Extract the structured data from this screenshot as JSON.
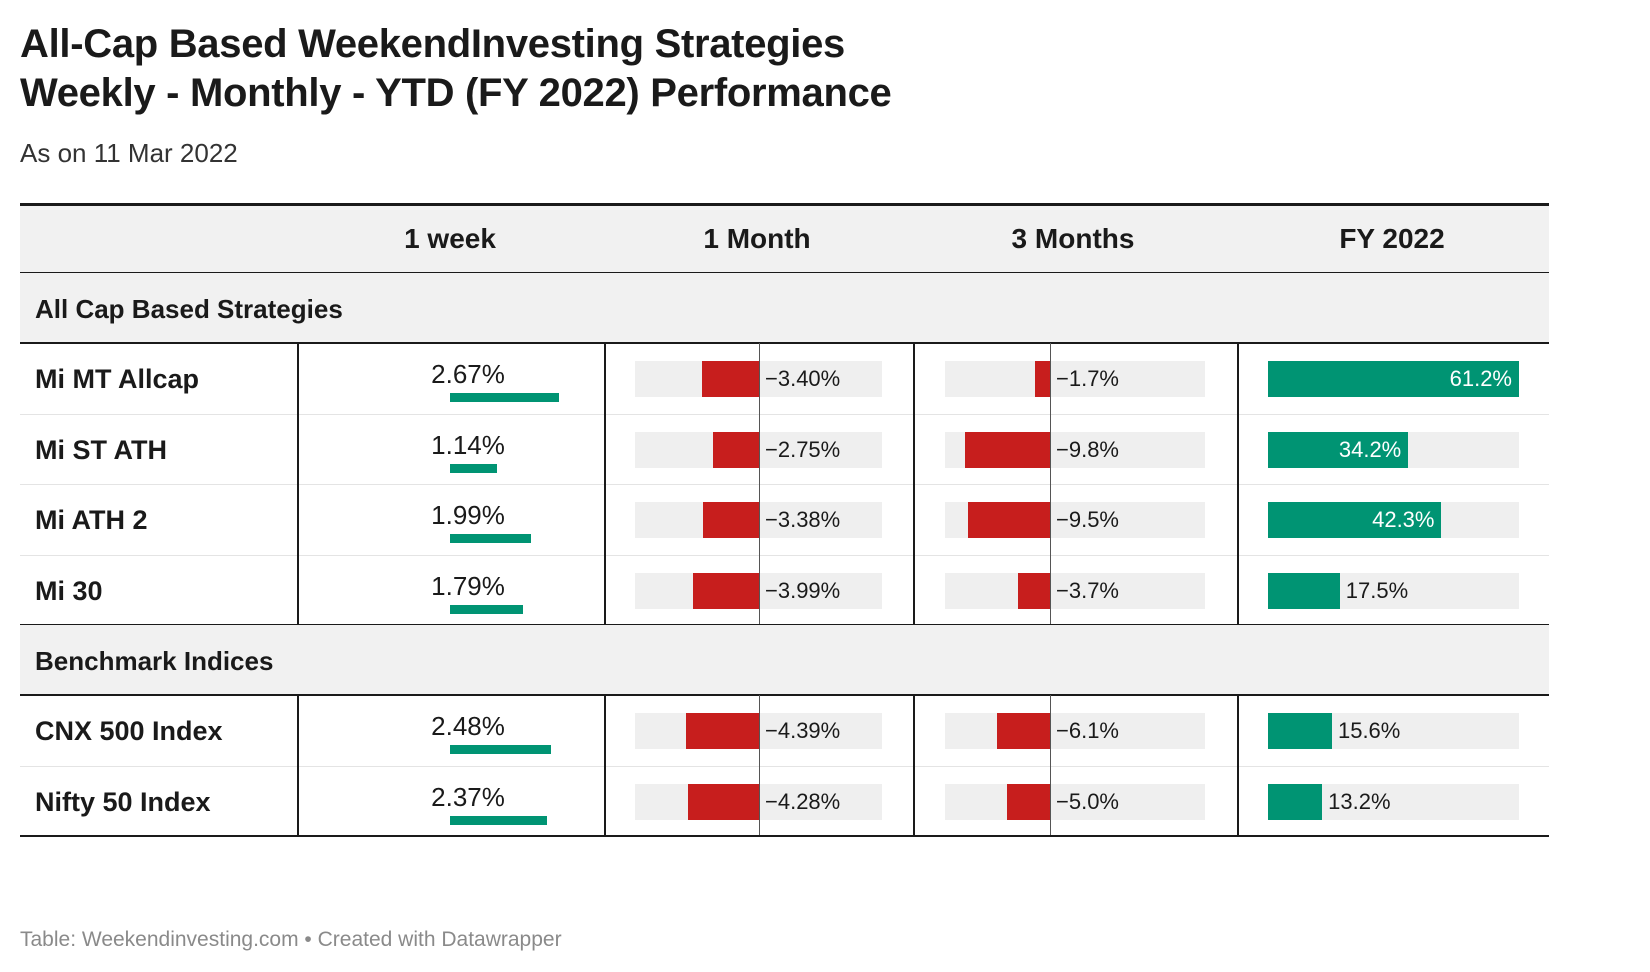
{
  "title_lines": [
    "All-Cap Based WeekendInvesting Strategies",
    "Weekly - Monthly - YTD (FY 2022)  Performance"
  ],
  "subtitle": "As on 11 Mar 2022",
  "footer": "Table: Weekendinvesting.com • Created with Datawrapper",
  "colors": {
    "positive": "#009473",
    "negative": "#c71e1d",
    "bar_background": "#efefef",
    "header_background": "#f1f1f1",
    "rule": "#1a1a1a"
  },
  "chart_data": {
    "type": "table",
    "columns": [
      "1 week",
      "1 Month",
      "3 Months",
      "FY 2022"
    ],
    "groups": [
      {
        "label": "All Cap Based Strategies",
        "rows": [
          {
            "name": "Mi MT Allcap",
            "week": 2.67,
            "month": -3.4,
            "three_months": -1.7,
            "fy2022": 61.2
          },
          {
            "name": "Mi ST ATH",
            "week": 1.14,
            "month": -2.75,
            "three_months": -9.8,
            "fy2022": 34.2
          },
          {
            "name": "Mi ATH 2",
            "week": 1.99,
            "month": -3.38,
            "three_months": -9.5,
            "fy2022": 42.3
          },
          {
            "name": "Mi 30",
            "week": 1.79,
            "month": -3.99,
            "three_months": -3.7,
            "fy2022": 17.5
          }
        ]
      },
      {
        "label": "Benchmark Indices",
        "rows": [
          {
            "name": "CNX 500 Index",
            "week": 2.48,
            "month": -4.39,
            "three_months": -6.1,
            "fy2022": 15.6
          },
          {
            "name": "Nifty 50 Index",
            "week": 2.37,
            "month": -4.28,
            "three_months": -5.0,
            "fy2022": 13.2
          }
        ]
      }
    ],
    "value_labels": {
      "week": [
        "2.67%",
        "1.14%",
        "1.99%",
        "1.79%",
        "2.48%",
        "2.37%"
      ],
      "month": [
        "−3.40%",
        "−2.75%",
        "−3.38%",
        "−3.99%",
        "−4.39%",
        "−4.28%"
      ],
      "three_months": [
        "−1.7%",
        "−9.8%",
        "−9.5%",
        "−3.7%",
        "−6.1%",
        "−5.0%"
      ],
      "fy2022": [
        "61.2%",
        "34.2%",
        "42.3%",
        "17.5%",
        "15.6%",
        "13.2%"
      ]
    },
    "scales": {
      "week": [
        0,
        2.67
      ],
      "month": [
        -10.2,
        4.65
      ],
      "three_months": [
        -18.05,
        12.0
      ],
      "fy2022": [
        0,
        61.2
      ]
    }
  }
}
